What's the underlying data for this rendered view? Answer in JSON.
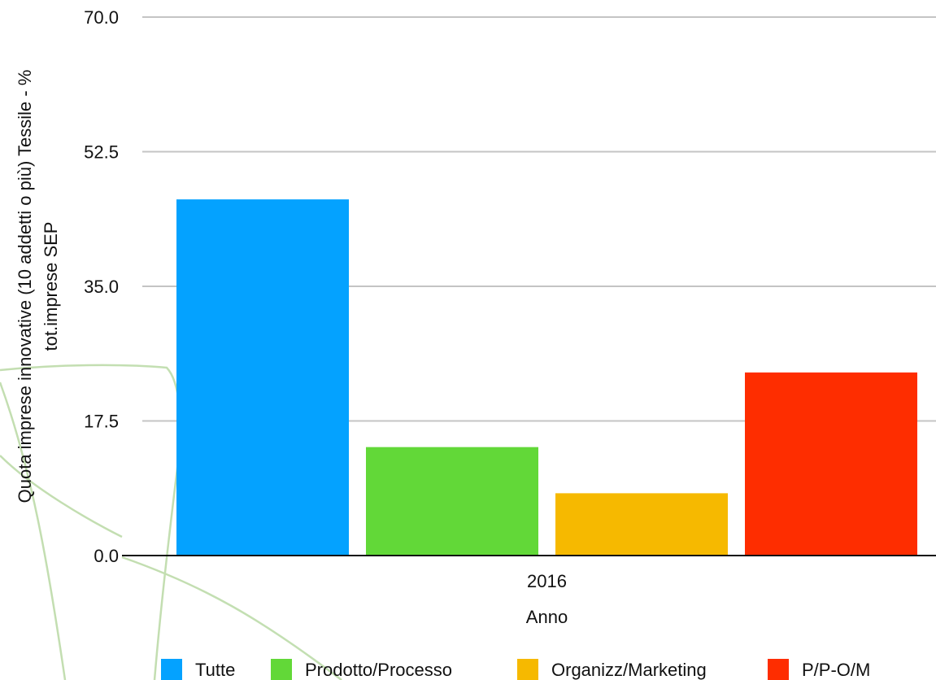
{
  "chart_data": {
    "type": "bar",
    "title": "",
    "xlabel": "Anno",
    "ylabel_lines": [
      "Quota imprese innovative (10 addetti o più) Tessile - %",
      "tot.imprese SEP"
    ],
    "categories": [
      "2016"
    ],
    "ylim": [
      0,
      70
    ],
    "yticks": [
      "0.0",
      "17.5",
      "35.0",
      "52.5",
      "70.0"
    ],
    "grid": true,
    "legend_position": "bottom",
    "series": [
      {
        "name": "Tutte",
        "values": [
          46.3
        ],
        "color": "#04a2ff"
      },
      {
        "name": "Prodotto/Processo",
        "values": [
          14.1
        ],
        "color": "#62d838"
      },
      {
        "name": "Organizz/Marketing",
        "values": [
          8.1
        ],
        "color": "#f6b900"
      },
      {
        "name": "P/P-O/M",
        "values": [
          23.8
        ],
        "color": "#fe2d00"
      }
    ]
  }
}
